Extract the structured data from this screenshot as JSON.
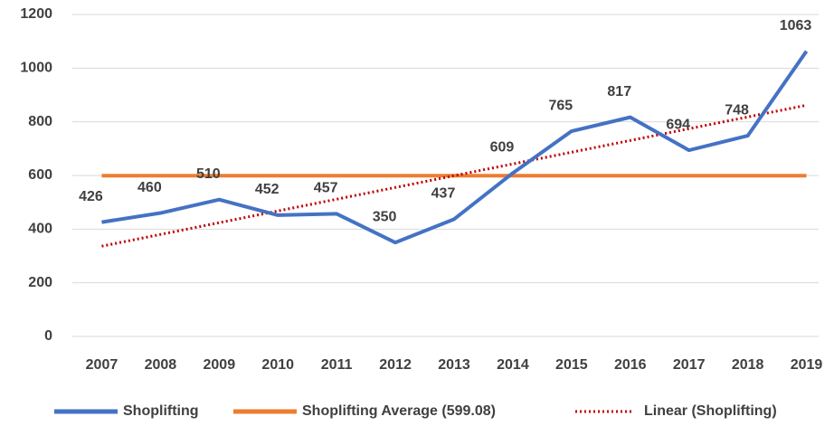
{
  "chart_data": {
    "type": "line",
    "categories": [
      "2007",
      "2008",
      "2009",
      "2010",
      "2011",
      "2012",
      "2013",
      "2014",
      "2015",
      "2016",
      "2017",
      "2018",
      "2019"
    ],
    "series": [
      {
        "name": "Shoplifting",
        "color": "#4472c4",
        "style": "solid",
        "data_labels": true,
        "values": [
          426,
          460,
          510,
          452,
          457,
          350,
          437,
          609,
          765,
          817,
          694,
          748,
          1063
        ]
      },
      {
        "name": "Shoplifting Average (599.08)",
        "color": "#ed7d31",
        "style": "solid",
        "values": [
          599.08,
          599.08,
          599.08,
          599.08,
          599.08,
          599.08,
          599.08,
          599.08,
          599.08,
          599.08,
          599.08,
          599.08,
          599.08
        ]
      },
      {
        "name": "Linear (Shoplifting)",
        "color": "#c00000",
        "style": "dotted",
        "values": [
          336.4,
          380.2,
          424.0,
          467.7,
          511.5,
          555.3,
          599.1,
          642.9,
          686.6,
          730.4,
          774.2,
          818.0,
          861.8
        ]
      }
    ],
    "ylim": [
      0,
      1200
    ],
    "yticks": [
      0,
      200,
      400,
      600,
      800,
      1000,
      1200
    ],
    "grid": true,
    "legend": "bottom"
  }
}
